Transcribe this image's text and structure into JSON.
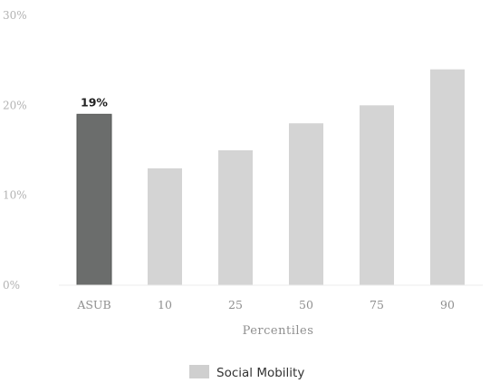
{
  "chart_data": {
    "type": "bar",
    "categories": [
      "ASUB",
      "10",
      "25",
      "50",
      "75",
      "90"
    ],
    "values": [
      19,
      13,
      15,
      18,
      20,
      24
    ],
    "highlight_index": 0,
    "data_labels": [
      "19%",
      "",
      "",
      "",
      "",
      ""
    ],
    "y_ticks": [
      "0%",
      "10%",
      "20%",
      "30%"
    ],
    "ylim": [
      0,
      30
    ],
    "xlabel": "Percentiles",
    "ylabel": "",
    "title": "",
    "legend": {
      "label": "Social Mobility",
      "placement": "bottom-center"
    },
    "grid": false,
    "colors": {
      "highlight": "#6b6d6c",
      "bar": "#d4d4d4",
      "legend_swatch": "#cfcfcf"
    }
  }
}
